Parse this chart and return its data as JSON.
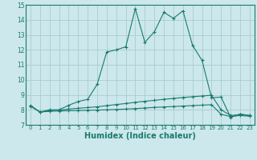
{
  "line1_x": [
    0,
    1,
    2,
    3,
    4,
    5,
    6,
    7,
    8,
    9,
    10,
    11,
    12,
    13,
    14,
    15,
    16,
    17,
    18,
    19,
    20,
    21,
    22,
    23
  ],
  "line1_y": [
    8.3,
    7.85,
    8.0,
    8.0,
    8.3,
    8.55,
    8.7,
    9.7,
    11.85,
    12.0,
    12.2,
    14.75,
    12.5,
    13.2,
    14.5,
    14.1,
    14.6,
    12.3,
    11.3,
    8.8,
    8.85,
    7.5,
    7.72,
    7.62
  ],
  "line2_x": [
    0,
    1,
    2,
    3,
    4,
    5,
    6,
    7,
    8,
    9,
    10,
    11,
    12,
    13,
    14,
    15,
    16,
    17,
    18,
    19,
    20,
    21,
    22,
    23
  ],
  "line2_y": [
    8.25,
    7.85,
    7.95,
    7.98,
    8.05,
    8.1,
    8.15,
    8.2,
    8.28,
    8.35,
    8.42,
    8.5,
    8.57,
    8.63,
    8.7,
    8.76,
    8.82,
    8.87,
    8.92,
    8.97,
    8.0,
    7.62,
    7.68,
    7.62
  ],
  "line3_x": [
    0,
    1,
    2,
    3,
    4,
    5,
    6,
    7,
    8,
    9,
    10,
    11,
    12,
    13,
    14,
    15,
    16,
    17,
    18,
    19,
    20,
    21,
    22,
    23
  ],
  "line3_y": [
    8.25,
    7.85,
    7.9,
    7.92,
    7.94,
    7.95,
    7.97,
    7.98,
    8.0,
    8.02,
    8.05,
    8.08,
    8.12,
    8.16,
    8.19,
    8.22,
    8.25,
    8.28,
    8.31,
    8.34,
    7.7,
    7.55,
    7.62,
    7.57
  ],
  "line_color": "#1a7a6e",
  "bg_color": "#cce8ec",
  "grid_color": "#aaccd0",
  "xlabel": "Humidex (Indice chaleur)",
  "ylim": [
    7,
    15
  ],
  "xlim": [
    -0.5,
    23.5
  ],
  "yticks": [
    7,
    8,
    9,
    10,
    11,
    12,
    13,
    14,
    15
  ],
  "xticks": [
    0,
    1,
    2,
    3,
    4,
    5,
    6,
    7,
    8,
    9,
    10,
    11,
    12,
    13,
    14,
    15,
    16,
    17,
    18,
    19,
    20,
    21,
    22,
    23
  ],
  "xlabel_fontsize": 7,
  "tick_fontsize": 5,
  "ytick_fontsize": 5.5
}
